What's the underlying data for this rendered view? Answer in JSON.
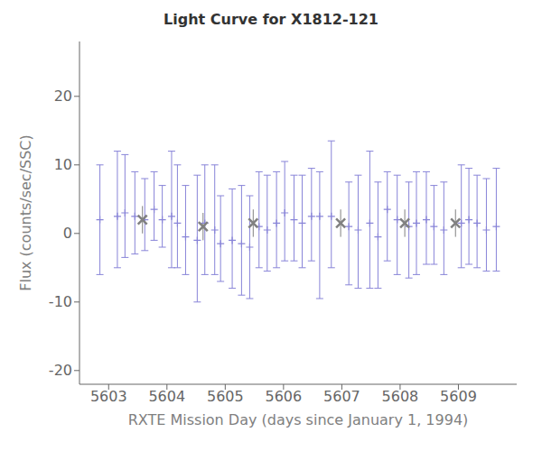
{
  "chart_data": {
    "type": "scatter",
    "title": "Light Curve for X1812-121",
    "x_label": "RXTE Mission Day (days since January 1, 1994)",
    "y_label": "Flux (counts/sec/SSC)",
    "xlim": [
      5602.5,
      5610.0
    ],
    "ylim": [
      -22,
      28
    ],
    "xticks": [
      5603,
      5604,
      5605,
      5606,
      5607,
      5608,
      5609
    ],
    "yticks": [
      -20,
      -10,
      0,
      10,
      20
    ],
    "grid": false,
    "series": [
      {
        "color": "#8884d8",
        "marker": "plus",
        "x": [
          5602.85,
          5603.15,
          5603.28,
          5603.45,
          5603.62,
          5603.78,
          5603.92,
          5604.08,
          5604.18,
          5604.32,
          5604.52,
          5604.65,
          5604.82,
          5604.92,
          5605.12,
          5605.28,
          5605.42,
          5605.58,
          5605.72,
          5605.88,
          5606.02,
          5606.18,
          5606.32,
          5606.48,
          5606.62,
          5606.82,
          5607.12,
          5607.28,
          5607.48,
          5607.62,
          5607.78,
          5607.95,
          5608.15,
          5608.28,
          5608.45,
          5608.58,
          5608.75,
          5609.05,
          5609.18,
          5609.32,
          5609.48,
          5609.65
        ],
        "values": [
          2.0,
          2.5,
          3.0,
          2.5,
          2.0,
          3.5,
          2.0,
          2.5,
          1.5,
          -0.5,
          -1.0,
          1.5,
          0.5,
          -1.5,
          -1.0,
          -1.5,
          -2.0,
          1.0,
          0.5,
          1.5,
          3.0,
          2.0,
          1.5,
          2.5,
          2.5,
          2.5,
          1.0,
          0.5,
          1.5,
          -0.5,
          3.5,
          2.0,
          1.0,
          1.5,
          2.0,
          1.0,
          0.5,
          1.5,
          2.0,
          1.5,
          0.5,
          1.0
        ],
        "yerr_lo": [
          8.0,
          7.5,
          6.5,
          5.5,
          4.5,
          4.5,
          4.0,
          7.5,
          6.5,
          5.5,
          9.0,
          7.5,
          6.5,
          5.5,
          7.0,
          7.5,
          7.5,
          6.0,
          6.0,
          6.5,
          7.0,
          6.0,
          6.5,
          6.5,
          12.0,
          7.5,
          8.5,
          8.5,
          9.5,
          7.5,
          7.5,
          8.0,
          7.5,
          7.5,
          6.5,
          5.5,
          6.5,
          6.5,
          6.5,
          6.5,
          6.0,
          6.5
        ],
        "yerr_hi": [
          8.0,
          9.5,
          8.5,
          6.5,
          6.0,
          5.5,
          5.0,
          9.5,
          8.5,
          7.5,
          9.5,
          8.5,
          9.5,
          7.0,
          7.5,
          8.5,
          7.5,
          8.0,
          8.0,
          7.5,
          7.5,
          6.5,
          7.0,
          7.0,
          6.5,
          11.0,
          6.5,
          8.0,
          10.5,
          8.0,
          5.5,
          6.5,
          6.5,
          7.5,
          7.0,
          6.0,
          7.0,
          8.5,
          7.5,
          7.0,
          7.5,
          8.5
        ]
      },
      {
        "color": "gray",
        "marker": "x",
        "x": [
          5603.58,
          5604.62,
          5605.48,
          5606.98,
          5608.08,
          5608.95
        ],
        "values": [
          2.0,
          1.0,
          1.5,
          1.5,
          1.5,
          1.5
        ],
        "yerr": [
          2.0,
          2.0,
          2.0,
          2.0,
          2.0,
          2.0
        ]
      }
    ]
  }
}
